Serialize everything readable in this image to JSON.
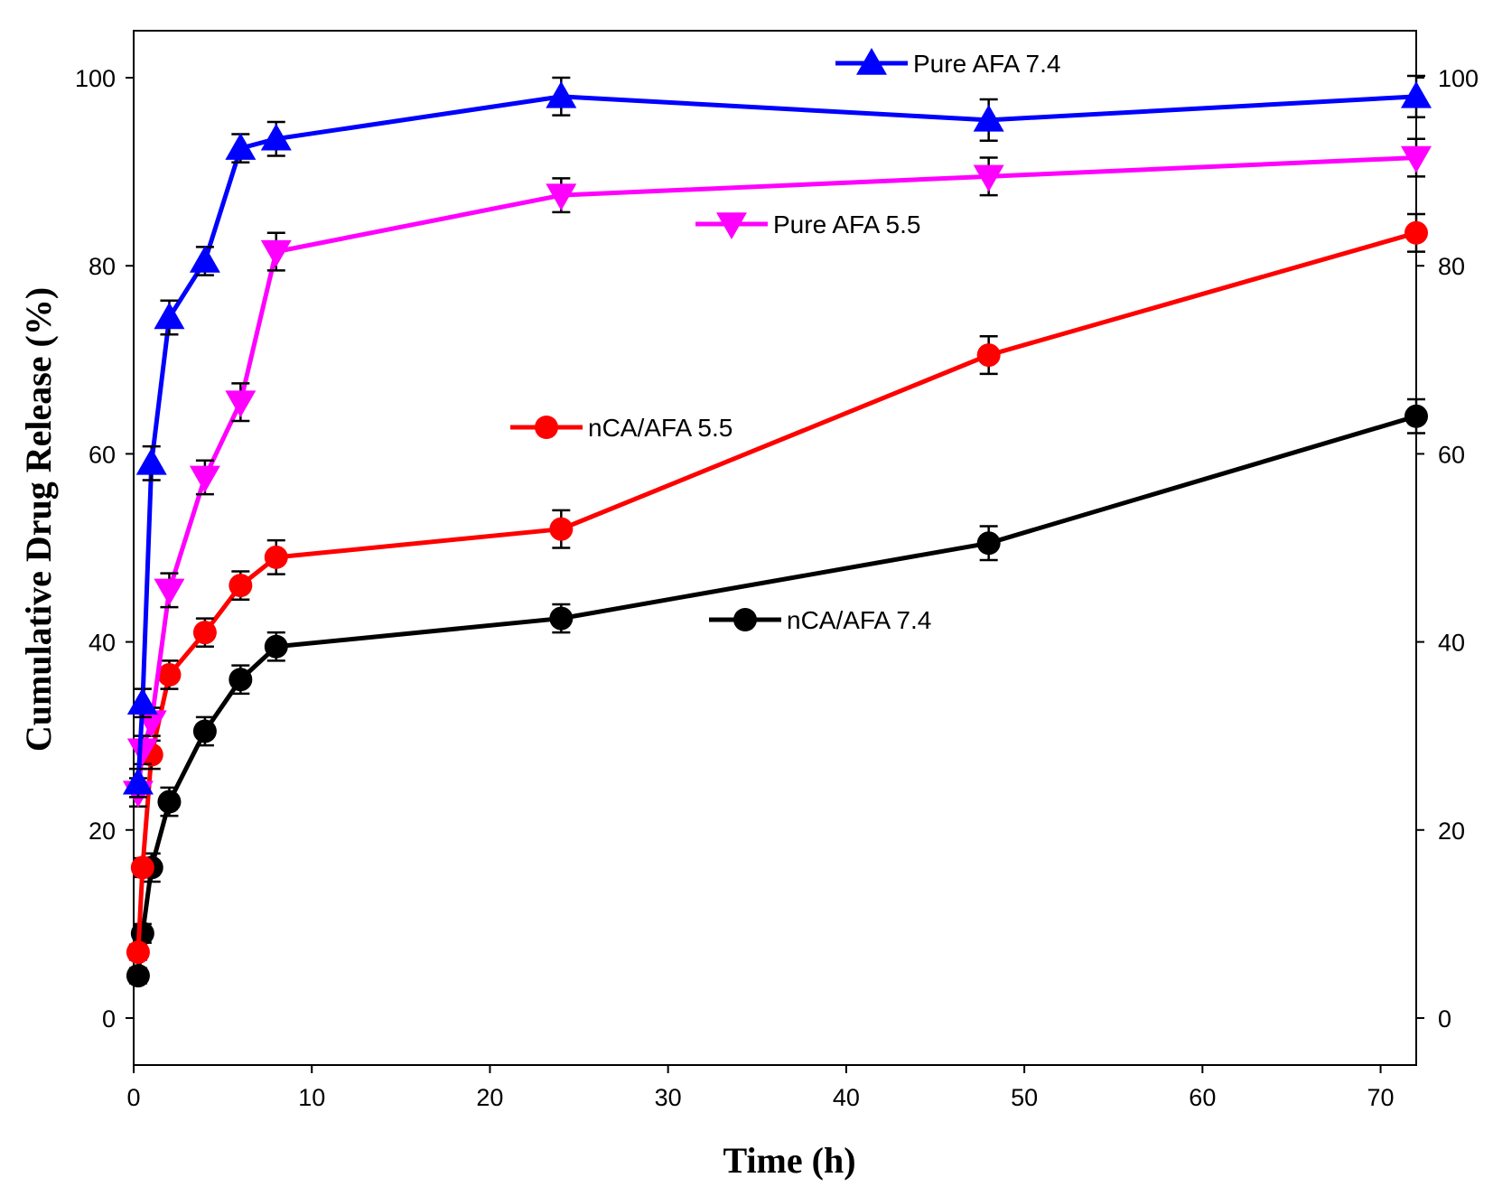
{
  "chart_data": {
    "type": "line",
    "title": "",
    "xlabel": "Time (h)",
    "ylabel": "Cumulative Drug Release (%)",
    "xlim": [
      0,
      72
    ],
    "ylim": [
      -5,
      105
    ],
    "xticks": [
      0,
      10,
      20,
      30,
      40,
      50,
      60,
      70
    ],
    "yticks": [
      0,
      20,
      40,
      60,
      80,
      100
    ],
    "x": [
      0.25,
      0.5,
      1,
      2,
      4,
      6,
      8,
      24,
      48,
      72
    ],
    "series": [
      {
        "name": "Pure AFA 7.4",
        "label": "Pure AFA 7.4",
        "color": "#0000ff",
        "marker": "triangle-up",
        "values": [
          25,
          33.5,
          59,
          74.5,
          80.5,
          92.5,
          93.5,
          98,
          95.5,
          98
        ],
        "errors": [
          1.5,
          1.5,
          1.8,
          1.8,
          1.5,
          1.5,
          1.8,
          2,
          2.2,
          2.2
        ]
      },
      {
        "name": "Pure AFA 5.5",
        "label": "Pure AFA 5.5",
        "color": "#ff00ff",
        "marker": "triangle-down",
        "values": [
          24,
          28.5,
          31.5,
          45.5,
          57.5,
          65.5,
          81.5,
          87.5,
          89.5,
          91.5
        ],
        "errors": [
          1.5,
          1.5,
          1.5,
          1.8,
          1.8,
          2,
          2,
          1.8,
          2,
          2
        ]
      },
      {
        "name": "nCA/AFA 5.5",
        "label": "nCA/AFA 5.5",
        "color": "#ff0000",
        "marker": "circle",
        "values": [
          7,
          16,
          28,
          36.5,
          41,
          46,
          49,
          52,
          70.5,
          83.5
        ],
        "errors": [
          0.8,
          1,
          1.5,
          1.5,
          1.5,
          1.5,
          1.8,
          2,
          2,
          2
        ]
      },
      {
        "name": "nCA/AFA 7.4",
        "label": "nCA/AFA 7.4",
        "color": "#000000",
        "marker": "circle",
        "values": [
          4.5,
          9,
          16,
          23,
          30.5,
          36,
          39.5,
          42.5,
          50.5,
          64
        ],
        "errors": [
          0.8,
          1,
          1.5,
          1.5,
          1.5,
          1.5,
          1.5,
          1.5,
          1.8,
          1.8
        ]
      }
    ],
    "legend": "inline labels near curves"
  }
}
